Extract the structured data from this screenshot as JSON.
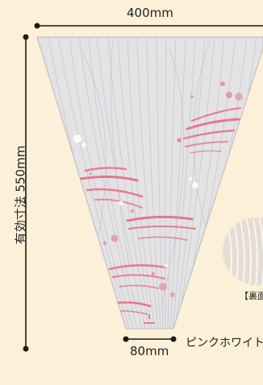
{
  "dimensions": {
    "top_width": "400mm",
    "effective_height": "有効寸法 550mm",
    "bottom_width": "80mm"
  },
  "product": {
    "color_name": "ピンクホワイト",
    "back_label": "【裏面"
  },
  "colors": {
    "background": "#fcf0d8",
    "bag_fill": "#e3e3e6",
    "accent_pink": "#e8637a",
    "dimension_line": "#1a1a1a"
  }
}
